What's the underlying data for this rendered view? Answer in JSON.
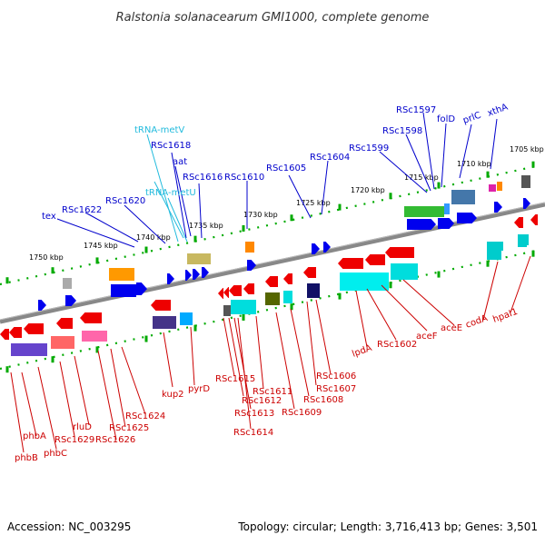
{
  "title": "Ralstonia solanacearum GMI1000, complete genome",
  "footer": {
    "accession": "Accession: NC_003295",
    "summary": "Topology: circular; Length: 3,716,413 bp; Genes: 3,501"
  },
  "colors": {
    "forward_label": "#0000cc",
    "reverse_label": "#cc0000",
    "trna_label": "#22bbdd",
    "forward_gene": "#0000ee",
    "reverse_gene": "#ee0000",
    "backbone": "#888888",
    "tick": "#00aa00"
  },
  "scale_labels": [
    "1750 kbp",
    "1745 kbp",
    "1740 kbp",
    "1735 kbp",
    "1730 kbp",
    "1725 kbp",
    "1720 kbp",
    "1715 kbp",
    "1710 kbp",
    "1705 kbp"
  ],
  "top_labels": [
    {
      "text": "tex",
      "kind": "gene"
    },
    {
      "text": "RSc1622",
      "kind": "gene"
    },
    {
      "text": "RSc1620",
      "kind": "gene"
    },
    {
      "text": "tRNA-metV",
      "kind": "trna"
    },
    {
      "text": "RSc1618",
      "kind": "gene"
    },
    {
      "text": "aat",
      "kind": "gene"
    },
    {
      "text": "tRNA-metU",
      "kind": "trna"
    },
    {
      "text": "RSc1616",
      "kind": "gene"
    },
    {
      "text": "RSc1610",
      "kind": "gene"
    },
    {
      "text": "RSc1605",
      "kind": "gene"
    },
    {
      "text": "RSc1604",
      "kind": "gene"
    },
    {
      "text": "RSc1599",
      "kind": "gene"
    },
    {
      "text": "RSc1598",
      "kind": "gene"
    },
    {
      "text": "RSc1597",
      "kind": "gene"
    },
    {
      "text": "folD",
      "kind": "gene"
    },
    {
      "text": "prlC",
      "kind": "gene"
    },
    {
      "text": "xthA",
      "kind": "gene"
    }
  ],
  "bottom_labels": [
    {
      "text": "phbB"
    },
    {
      "text": "phbA"
    },
    {
      "text": "phbC"
    },
    {
      "text": "RSc1629"
    },
    {
      "text": "rluD"
    },
    {
      "text": "RSc1626"
    },
    {
      "text": "RSc1625"
    },
    {
      "text": "RSc1624"
    },
    {
      "text": "kup2"
    },
    {
      "text": "pyrD"
    },
    {
      "text": "RSc1615"
    },
    {
      "text": "RSc1612"
    },
    {
      "text": "RSc1613"
    },
    {
      "text": "RSc1614"
    },
    {
      "text": "RSc1611"
    },
    {
      "text": "RSc1609"
    },
    {
      "text": "RSc1608"
    },
    {
      "text": "RSc1607"
    },
    {
      "text": "RSc1606"
    },
    {
      "text": "lpdA"
    },
    {
      "text": "RSc1602"
    },
    {
      "text": "aceF"
    },
    {
      "text": "aceE"
    },
    {
      "text": "codA"
    },
    {
      "text": "hpaI1"
    }
  ]
}
